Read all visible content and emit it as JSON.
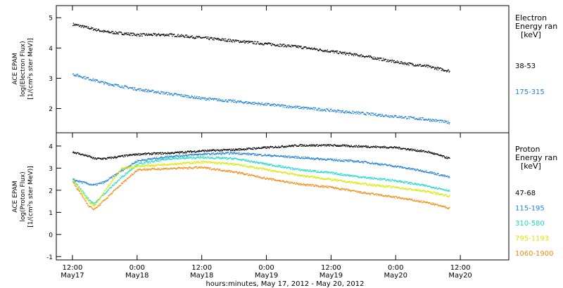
{
  "chart_data": [
    {
      "type": "scatter",
      "instrument": "ACE EPAM",
      "ylabel_line1": "ACE EPAM",
      "ylabel_line2": "log(Electron Flux)",
      "ylabel_line3": "[1/(cm²s ster MeV)]",
      "ylim": [
        1.2,
        5.4
      ],
      "y_ticks": [
        2,
        3,
        4,
        5
      ],
      "legend_title_1": "Electron",
      "legend_title_2": "Energy ran",
      "legend_units": "[keV]",
      "grid": false,
      "x_hours": [
        0,
        6,
        12,
        18,
        24,
        30,
        36,
        42,
        48,
        54,
        60,
        66,
        70
      ],
      "series": [
        {
          "name": "38-53",
          "color": "#000000",
          "values": [
            4.8,
            4.55,
            4.45,
            4.45,
            4.35,
            4.25,
            4.15,
            4.05,
            3.9,
            3.75,
            3.55,
            3.4,
            3.25
          ]
        },
        {
          "name": "175-315",
          "color": "#1e7fd6",
          "values": [
            3.15,
            2.85,
            2.65,
            2.5,
            2.35,
            2.25,
            2.15,
            2.05,
            1.95,
            1.85,
            1.75,
            1.65,
            1.55
          ]
        }
      ]
    },
    {
      "type": "scatter",
      "instrument": "ACE EPAM",
      "ylabel_line1": "ACE EPAM",
      "ylabel_line2": "log(Proton Flux)",
      "ylabel_line3": "[1/(cm²s ster MeV)]",
      "ylim": [
        -1.15,
        4.6
      ],
      "y_ticks": [
        -1,
        0,
        1,
        2,
        3,
        4
      ],
      "legend_title_1": "Proton",
      "legend_title_2": "Energy ran",
      "legend_units": "[keV]",
      "grid": false,
      "x_hours": [
        0,
        3,
        4,
        6,
        9,
        12,
        18,
        24,
        30,
        36,
        42,
        48,
        54,
        60,
        66,
        70
      ],
      "series": [
        {
          "name": "47-68",
          "color": "#000000",
          "values": [
            3.75,
            3.55,
            3.45,
            3.45,
            3.55,
            3.65,
            3.7,
            3.8,
            3.85,
            3.95,
            4.05,
            4.05,
            4.0,
            3.95,
            3.75,
            3.45
          ]
        },
        {
          "name": "115-195",
          "color": "#1e7fd6",
          "values": [
            2.5,
            2.3,
            2.25,
            2.4,
            2.9,
            3.35,
            3.55,
            3.65,
            3.7,
            3.6,
            3.5,
            3.4,
            3.3,
            3.1,
            2.85,
            2.6
          ]
        },
        {
          "name": "310-580",
          "color": "#19d9c6",
          "values": [
            2.5,
            1.6,
            1.4,
            1.9,
            2.6,
            3.2,
            3.45,
            3.5,
            3.45,
            3.2,
            2.95,
            2.8,
            2.6,
            2.45,
            2.2,
            2.0
          ]
        },
        {
          "name": "795-1193",
          "color": "#d7e800",
          "values": [
            2.45,
            1.5,
            1.3,
            2.0,
            3.0,
            3.1,
            3.2,
            3.3,
            3.2,
            2.95,
            2.7,
            2.5,
            2.3,
            2.15,
            1.95,
            1.75
          ]
        },
        {
          "name": "1060-1900",
          "color": "#f08a12",
          "values": [
            2.4,
            1.3,
            1.15,
            1.6,
            2.3,
            2.95,
            3.0,
            3.05,
            2.85,
            2.55,
            2.3,
            2.15,
            1.9,
            1.7,
            1.45,
            1.2
          ]
        }
      ]
    }
  ],
  "x_axis": {
    "xlim_hours": [
      -3,
      81
    ],
    "ticks": [
      {
        "hour": 0,
        "time": "12:00",
        "day": "May17"
      },
      {
        "hour": 12,
        "time": "0:00",
        "day": "May18"
      },
      {
        "hour": 24,
        "time": "12:00",
        "day": "May18"
      },
      {
        "hour": 36,
        "time": "0:00",
        "day": "May19"
      },
      {
        "hour": 48,
        "time": "12:00",
        "day": "May19"
      },
      {
        "hour": 60,
        "time": "0:00",
        "day": "May20"
      },
      {
        "hour": 72,
        "time": "12:00",
        "day": "May20"
      }
    ],
    "xlabel": "hours:minutes, May 17, 2012 - May 20, 2012"
  }
}
